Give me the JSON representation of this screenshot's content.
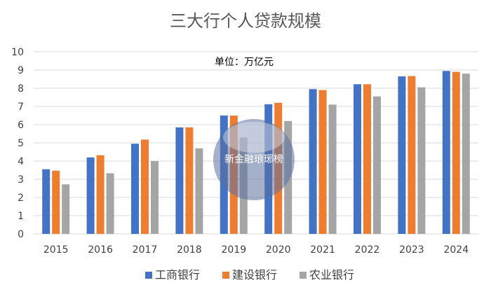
{
  "chart_data": {
    "type": "bar",
    "title": "三大行个人贷款规模",
    "unit_label": "单位：万亿元",
    "xlabel": "",
    "ylabel": "",
    "ylim": [
      0,
      10
    ],
    "yticks": [
      "0",
      "1",
      "2",
      "3",
      "4",
      "5",
      "6",
      "7",
      "8",
      "9",
      "10"
    ],
    "grid": true,
    "legend_position": "bottom",
    "categories": [
      "2015",
      "2016",
      "2017",
      "2018",
      "2019",
      "2020",
      "2021",
      "2022",
      "2023",
      "2024"
    ],
    "series": [
      {
        "name": "工商银行",
        "color": "#4472c4",
        "values": [
          3.55,
          4.2,
          4.95,
          5.85,
          6.5,
          7.12,
          7.95,
          8.22,
          8.65,
          8.95
        ]
      },
      {
        "name": "建设银行",
        "color": "#ed7d31",
        "values": [
          3.47,
          4.32,
          5.18,
          5.85,
          6.5,
          7.2,
          7.9,
          8.22,
          8.67,
          8.9
        ]
      },
      {
        "name": "农业银行",
        "color": "#a5a5a5",
        "values": [
          2.72,
          3.33,
          4.0,
          4.7,
          5.3,
          6.2,
          7.1,
          7.55,
          8.05,
          8.8
        ]
      }
    ]
  },
  "watermark": {
    "text": "新金融琅琊榜"
  }
}
